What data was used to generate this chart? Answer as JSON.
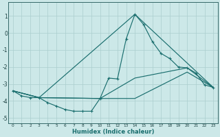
{
  "xlabel": "Humidex (Indice chaleur)",
  "bg_color": "#cce8e8",
  "grid_color": "#aacece",
  "line_color": "#1a6e6e",
  "xlim": [
    -0.5,
    23.5
  ],
  "ylim": [
    -5.3,
    1.8
  ],
  "yticks": [
    -5,
    -4,
    -3,
    -2,
    -1,
    0,
    1
  ],
  "xticks": [
    0,
    1,
    2,
    3,
    4,
    5,
    6,
    7,
    8,
    9,
    10,
    11,
    12,
    13,
    14,
    15,
    16,
    17,
    18,
    19,
    20,
    21,
    22,
    23
  ],
  "line_main": {
    "x": [
      0,
      1,
      2,
      3,
      4,
      5,
      6,
      7,
      8,
      9,
      10,
      11,
      12,
      13,
      14,
      15,
      16,
      17,
      18,
      19,
      20,
      21,
      22,
      23
    ],
    "y": [
      -3.4,
      -3.7,
      -3.8,
      -3.8,
      -4.1,
      -4.3,
      -4.5,
      -4.6,
      -4.6,
      -4.6,
      -3.85,
      -2.65,
      -2.7,
      -0.35,
      1.1,
      0.5,
      -0.5,
      -1.2,
      -1.5,
      -2.0,
      -2.05,
      -2.35,
      -3.05,
      -3.2
    ]
  },
  "line2": {
    "x": [
      0,
      3,
      10,
      14,
      20,
      23
    ],
    "y": [
      -3.4,
      -3.8,
      -3.85,
      -2.65,
      -2.05,
      -3.2
    ]
  },
  "line3": {
    "x": [
      0,
      3,
      14,
      23
    ],
    "y": [
      -3.4,
      -3.8,
      1.1,
      -3.2
    ]
  },
  "line4": {
    "x": [
      0,
      3,
      10,
      14,
      20,
      23
    ],
    "y": [
      -3.4,
      -3.8,
      -3.85,
      -3.85,
      -2.3,
      -3.2
    ]
  }
}
